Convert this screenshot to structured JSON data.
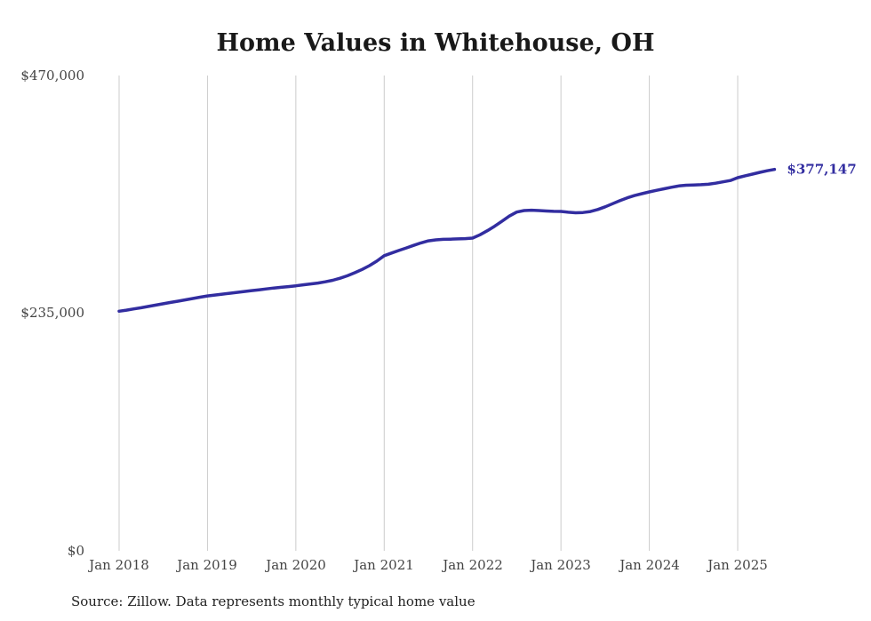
{
  "page": {
    "source_note": "Source: Zillow. Data represents monthly typical home value"
  },
  "chart_data": {
    "type": "line",
    "title": "Home Values in Whitehouse, OH",
    "series_name": "Typical home value",
    "xlabel": "",
    "ylabel": "",
    "ylim": [
      0,
      470000
    ],
    "grid": "vertical-only",
    "legend": "none",
    "line_color": "#322da0",
    "grid_color": "#cccccc",
    "end_label": "$377,147",
    "end_value": 377147,
    "y_ticks": [
      "$0",
      "$235,000",
      "$470,000"
    ],
    "y_tick_values": [
      0,
      235000,
      470000
    ],
    "x_ticks": [
      "Jan 2018",
      "Jan 2019",
      "Jan 2020",
      "Jan 2021",
      "Jan 2022",
      "Jan 2023",
      "Jan 2024",
      "Jan 2025"
    ],
    "x": [
      "2018-01",
      "2018-02",
      "2018-03",
      "2018-04",
      "2018-05",
      "2018-06",
      "2018-07",
      "2018-08",
      "2018-09",
      "2018-10",
      "2018-11",
      "2018-12",
      "2019-01",
      "2019-02",
      "2019-03",
      "2019-04",
      "2019-05",
      "2019-06",
      "2019-07",
      "2019-08",
      "2019-09",
      "2019-10",
      "2019-11",
      "2019-12",
      "2020-01",
      "2020-02",
      "2020-03",
      "2020-04",
      "2020-05",
      "2020-06",
      "2020-07",
      "2020-08",
      "2020-09",
      "2020-10",
      "2020-11",
      "2020-12",
      "2021-01",
      "2021-02",
      "2021-03",
      "2021-04",
      "2021-05",
      "2021-06",
      "2021-07",
      "2021-08",
      "2021-09",
      "2021-10",
      "2021-11",
      "2021-12",
      "2022-01",
      "2022-02",
      "2022-03",
      "2022-04",
      "2022-05",
      "2022-06",
      "2022-07",
      "2022-08",
      "2022-09",
      "2022-10",
      "2022-11",
      "2022-12",
      "2023-01",
      "2023-02",
      "2023-03",
      "2023-04",
      "2023-05",
      "2023-06",
      "2023-07",
      "2023-08",
      "2023-09",
      "2023-10",
      "2023-11",
      "2023-12",
      "2024-01",
      "2024-02",
      "2024-03",
      "2024-04",
      "2024-05",
      "2024-06",
      "2024-07",
      "2024-08",
      "2024-09",
      "2024-10",
      "2024-11",
      "2024-12",
      "2025-01",
      "2025-02",
      "2025-03",
      "2025-04",
      "2025-05",
      "2025-06"
    ],
    "values": [
      236900,
      238000,
      239200,
      240400,
      241700,
      243000,
      244300,
      245600,
      246900,
      248200,
      249500,
      250800,
      252000,
      252900,
      253800,
      254700,
      255600,
      256400,
      257300,
      258100,
      259000,
      259900,
      260600,
      261300,
      262100,
      263000,
      263900,
      264800,
      266000,
      267500,
      269500,
      272000,
      275000,
      278200,
      282000,
      286500,
      291800,
      294500,
      297000,
      299500,
      302000,
      304500,
      306500,
      307500,
      308000,
      308200,
      308400,
      308700,
      309200,
      312500,
      316500,
      321000,
      326000,
      331000,
      335000,
      336500,
      336800,
      336500,
      336000,
      335700,
      335600,
      334800,
      334300,
      334500,
      335500,
      337500,
      340200,
      343200,
      346200,
      349000,
      351300,
      353200,
      354900,
      356500,
      358000,
      359500,
      360800,
      361500,
      361800,
      362000,
      362500,
      363500,
      364800,
      366200,
      369000,
      370800,
      372500,
      374200,
      375800,
      377147
    ]
  }
}
